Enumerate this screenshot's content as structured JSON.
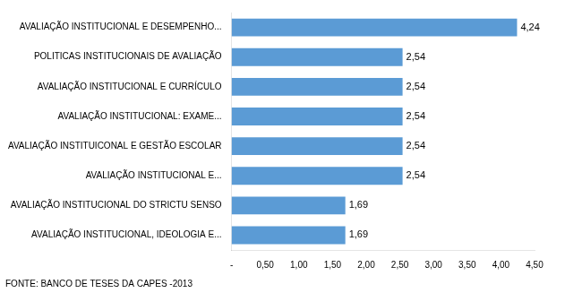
{
  "chart_data": {
    "type": "bar",
    "orientation": "horizontal",
    "categories": [
      "AVALIAÇÃO INSTITUCIONAL, IDEOLOGIA E...",
      "AVALIAÇÃO INSTITUCIONAL DO STRICTU SENSO",
      "AVALIAÇÃO INSTITUCIONAL E...",
      "AVALIAÇÃO INSTITUICONAL E GESTÃO ESCOLAR",
      "AVALIAÇÃO INSTITUCIONAL: EXAME...",
      "AVALIAÇÃO INSTITUCIONAL E CURRÍCULO",
      "POLITICAS INSTITUCIONAIS DE AVALIAÇÃO",
      "AVALIAÇÃO INSTITUCIONAL E DESEMPENHO..."
    ],
    "values": [
      1.69,
      1.69,
      2.54,
      2.54,
      2.54,
      2.54,
      2.54,
      4.24
    ],
    "value_labels": [
      "1,69",
      "1,69",
      "2,54",
      "2,54",
      "2,54",
      "2,54",
      "2,54",
      "4,24"
    ],
    "data_labels": true,
    "color": "#5b9bd5",
    "xlim": [
      0,
      4.5
    ],
    "xticks": [
      {
        "value": 0,
        "label": "-"
      },
      {
        "value": 0.5,
        "label": "0,50"
      },
      {
        "value": 1.0,
        "label": "1,00"
      },
      {
        "value": 1.5,
        "label": "1,50"
      },
      {
        "value": 2.0,
        "label": "2,00"
      },
      {
        "value": 2.5,
        "label": "2,50"
      },
      {
        "value": 3.0,
        "label": "3,00"
      },
      {
        "value": 3.5,
        "label": "3,50"
      },
      {
        "value": 4.0,
        "label": "4,00"
      },
      {
        "value": 4.5,
        "label": "4,50"
      }
    ],
    "grid": false,
    "annotations": [
      "FONTE: BANCO DE TESES DA CAPES -2013"
    ]
  }
}
